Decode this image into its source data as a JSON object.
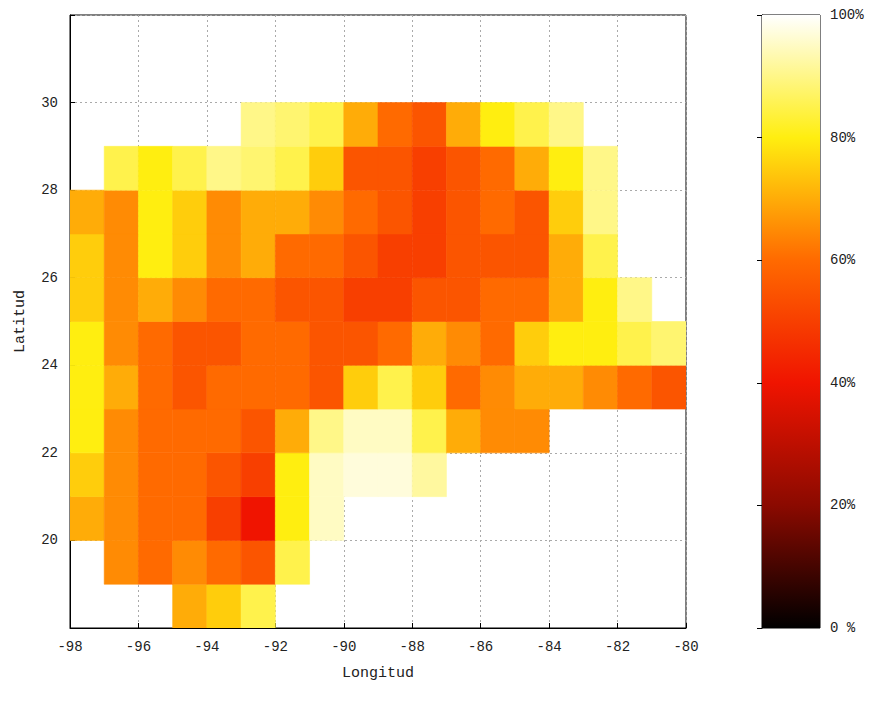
{
  "chart_data": {
    "type": "heatmap",
    "x_label": "Longitud",
    "y_label": "Latitud",
    "xlim": [
      -98,
      -80
    ],
    "xticks": [
      -98,
      -96,
      -94,
      -92,
      -90,
      -88,
      -86,
      -84,
      -82,
      -80
    ],
    "ylim": [
      18,
      32
    ],
    "yticks": [
      20,
      22,
      24,
      26,
      28,
      30
    ],
    "grid": true,
    "lon": [
      -97.5,
      -96.5,
      -95.5,
      -94.5,
      -93.5,
      -92.5,
      -91.5,
      -90.5,
      -89.5,
      -88.5,
      -87.5,
      -86.5,
      -85.5,
      -84.5,
      -83.5,
      -82.5,
      -81.5,
      -80.5
    ],
    "lat": [
      18.5,
      19.5,
      20.5,
      21.5,
      22.5,
      23.5,
      24.5,
      25.5,
      26.5,
      27.5,
      28.5,
      29.5
    ],
    "values": [
      [
        null,
        null,
        null,
        70,
        75,
        85,
        null,
        null,
        null,
        null,
        null,
        null,
        null,
        null,
        null,
        null,
        null,
        null
      ],
      [
        null,
        65,
        60,
        65,
        60,
        55,
        85,
        null,
        null,
        null,
        null,
        null,
        null,
        null,
        null,
        null,
        null,
        null
      ],
      [
        70,
        65,
        60,
        60,
        50,
        40,
        80,
        95,
        null,
        null,
        null,
        null,
        null,
        null,
        null,
        null,
        null,
        null
      ],
      [
        75,
        65,
        60,
        60,
        55,
        50,
        80,
        95,
        97,
        97,
        92,
        null,
        null,
        null,
        null,
        null,
        null,
        null
      ],
      [
        80,
        65,
        60,
        60,
        60,
        55,
        70,
        90,
        95,
        95,
        85,
        70,
        65,
        65,
        null,
        null,
        null,
        null
      ],
      [
        80,
        70,
        60,
        55,
        60,
        60,
        60,
        55,
        75,
        85,
        75,
        60,
        65,
        70,
        70,
        65,
        60,
        55
      ],
      [
        80,
        65,
        60,
        55,
        55,
        60,
        60,
        55,
        55,
        60,
        70,
        65,
        60,
        75,
        80,
        80,
        85,
        88
      ],
      [
        75,
        65,
        70,
        65,
        60,
        60,
        55,
        55,
        50,
        50,
        55,
        55,
        60,
        60,
        70,
        80,
        90,
        null
      ],
      [
        75,
        65,
        80,
        75,
        65,
        70,
        60,
        60,
        55,
        50,
        50,
        55,
        55,
        55,
        70,
        85,
        null,
        null
      ],
      [
        70,
        65,
        80,
        75,
        65,
        70,
        70,
        65,
        60,
        55,
        50,
        55,
        60,
        55,
        75,
        90,
        null,
        null
      ],
      [
        null,
        85,
        80,
        85,
        90,
        88,
        85,
        75,
        55,
        55,
        50,
        55,
        60,
        70,
        80,
        90,
        null,
        null
      ],
      [
        null,
        null,
        null,
        null,
        null,
        90,
        88,
        85,
        70,
        60,
        55,
        70,
        80,
        85,
        90,
        null,
        null,
        null
      ]
    ],
    "colorbar": {
      "range": [
        0,
        100
      ],
      "ticks": [
        {
          "value": 0,
          "label": "0 %"
        },
        {
          "value": 20,
          "label": "20%"
        },
        {
          "value": 40,
          "label": "40%"
        },
        {
          "value": 60,
          "label": "60%"
        },
        {
          "value": 80,
          "label": "80%"
        },
        {
          "value": 100,
          "label": "100%"
        }
      ],
      "colors": [
        "#000000",
        "#8b0a00",
        "#f01400",
        "#ff6a00",
        "#ffee10",
        "#ffffff"
      ]
    }
  }
}
